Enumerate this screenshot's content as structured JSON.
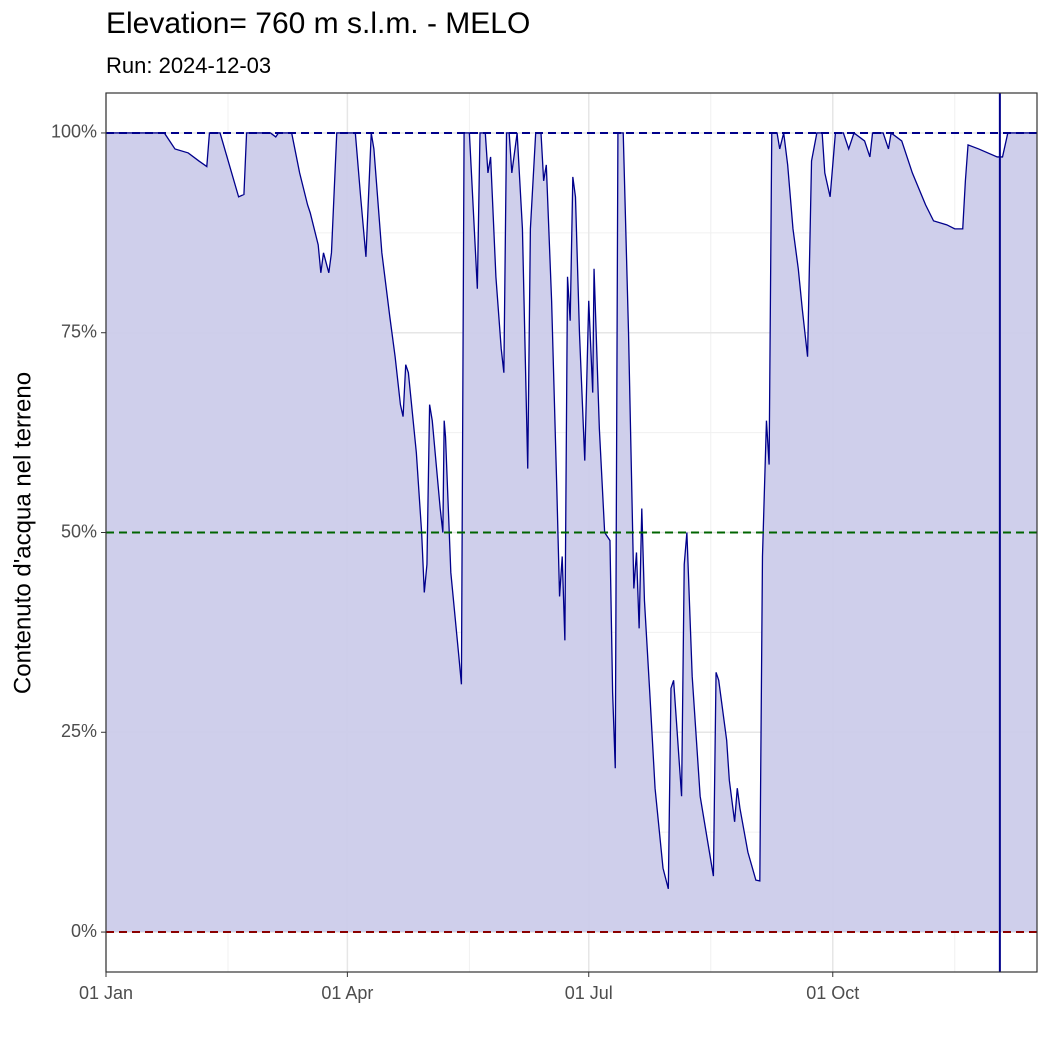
{
  "chart_data": {
    "type": "area",
    "title": "Elevation= 760 m s.l.m. - MELO",
    "subtitle": "Run: 2024-12-03",
    "ylabel": "Contenuto d'acqua nel terreno",
    "color": "#00008b",
    "fill": "#ccccea",
    "x": [
      0,
      22,
      26,
      31,
      35,
      38,
      39,
      43,
      50,
      52,
      53,
      62,
      64,
      65,
      70,
      73,
      76,
      77,
      80,
      81,
      82,
      84,
      85,
      87,
      94,
      96,
      98,
      100,
      101,
      104,
      107,
      109,
      111,
      112,
      113,
      114,
      117,
      119,
      120,
      121,
      122,
      123,
      126,
      127,
      127.5,
      128,
      130,
      133,
      134,
      135,
      137,
      139,
      140,
      141,
      143,
      144,
      145,
      147,
      149,
      150,
      151,
      152,
      153,
      155,
      157,
      159,
      160,
      162,
      164,
      165,
      166,
      168,
      170,
      171,
      172,
      173,
      174,
      175,
      176,
      177,
      178.5,
      180.5,
      182,
      183.5,
      184,
      186,
      188,
      190,
      191,
      192,
      193,
      195,
      197,
      199,
      200,
      201,
      202,
      203,
      205,
      207,
      210,
      212,
      213,
      214,
      217,
      218,
      219,
      221,
      224,
      227,
      229,
      230,
      231,
      234,
      235,
      237,
      238,
      239,
      242,
      245,
      246.5,
      247.5,
      249,
      250,
      251,
      253,
      254,
      255.5,
      257,
      259,
      261,
      262.5,
      264.5,
      266,
      268,
      270,
      271,
      273,
      275,
      278,
      280,
      282,
      286,
      288,
      289,
      293,
      295,
      296,
      300,
      304,
      309,
      312,
      317,
      320,
      323,
      324,
      325,
      329,
      336,
      338,
      340,
      351
    ],
    "values": [
      100,
      100,
      98,
      97.5,
      96.5,
      95.8,
      100,
      100,
      92,
      92.3,
      100,
      100,
      99.5,
      100,
      100,
      95,
      91,
      90,
      86,
      82.5,
      85,
      82.5,
      85,
      100,
      100,
      92,
      84.5,
      100,
      98,
      85,
      77,
      72,
      66,
      64.5,
      71,
      70,
      60,
      50,
      42.5,
      46,
      66,
      64,
      53,
      50,
      64,
      62,
      45,
      34.6,
      31,
      100,
      100,
      87,
      80.5,
      100,
      100,
      95,
      97,
      82,
      73,
      70,
      100,
      100,
      95,
      100,
      88,
      58,
      88,
      100,
      100,
      94,
      96,
      79,
      55,
      42,
      47,
      36.5,
      82,
      76.5,
      94.5,
      92,
      75,
      59,
      79,
      67.5,
      83,
      63,
      50,
      49,
      30,
      20.5,
      100,
      100,
      75,
      43,
      47.5,
      38,
      53,
      41.5,
      30,
      18,
      8,
      5.4,
      30.5,
      31.5,
      17,
      46,
      50,
      32,
      17,
      11,
      7,
      32.5,
      31.5,
      24,
      19,
      13.8,
      18,
      15.5,
      10,
      6.5,
      6.4,
      47,
      64,
      58.5,
      100,
      100,
      98,
      100,
      96,
      88,
      83,
      78,
      72,
      96.5,
      100,
      100,
      95,
      92,
      100,
      100,
      98,
      100,
      99,
      97,
      100,
      100,
      98,
      100,
      99,
      95,
      91,
      89,
      88.5,
      88,
      88,
      94,
      98.5,
      98,
      97,
      97,
      100,
      100
    ],
    "xlim": [
      0,
      351
    ],
    "ylim": [
      -5,
      105
    ],
    "xticks": [
      {
        "value": 0,
        "label": "01 Jan"
      },
      {
        "value": 91,
        "label": "01 Apr"
      },
      {
        "value": 182,
        "label": "01 Jul"
      },
      {
        "value": 274,
        "label": "01 Oct"
      }
    ],
    "yticks": [
      {
        "value": 0,
        "label": "0%"
      },
      {
        "value": 25,
        "label": "25%"
      },
      {
        "value": 50,
        "label": "50%"
      },
      {
        "value": 75,
        "label": "75%"
      },
      {
        "value": 100,
        "label": "100%"
      }
    ],
    "minor_xticks": [
      46,
      137,
      228,
      320
    ],
    "minor_yticks": [
      12.5,
      37.5,
      62.5,
      87.5
    ],
    "grid": true,
    "reference_lines": [
      {
        "value": 100,
        "color": "#00008b"
      },
      {
        "value": 50,
        "color": "#006400"
      },
      {
        "value": 0,
        "color": "#8b0000"
      }
    ],
    "vline": {
      "value": 337,
      "color": "#00008b"
    }
  }
}
